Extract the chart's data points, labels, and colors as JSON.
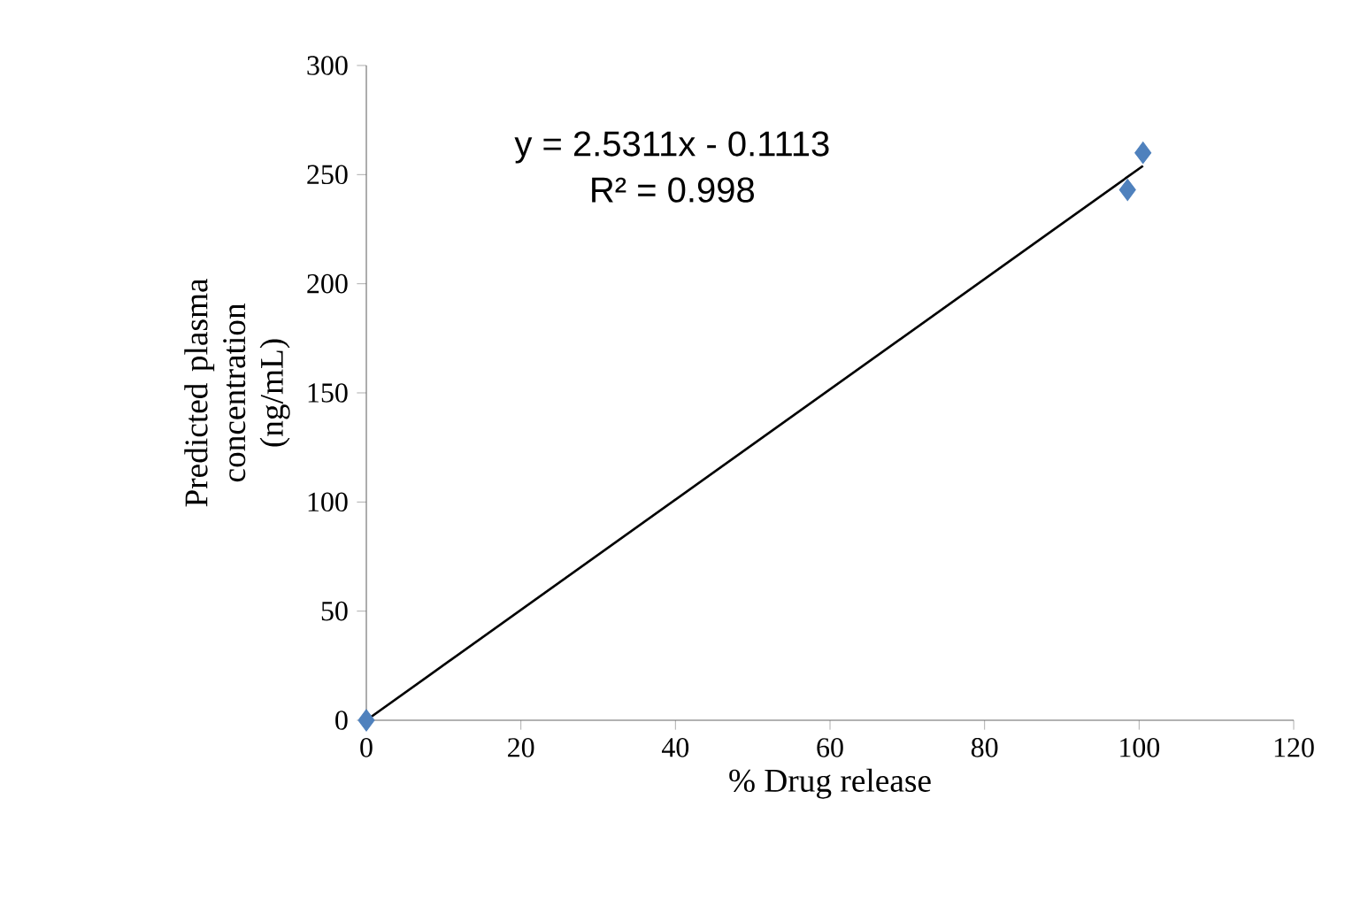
{
  "chart_data": {
    "type": "scatter",
    "xlabel": "% Drug release",
    "ylabel": "Predicted plasma concentration (ng/mL)",
    "annotations": [
      "y = 2.5311x - 0.1113",
      "R² = 0.998"
    ],
    "series": [
      {
        "color": "#4f81bd",
        "marker": "diamond",
        "x": [
          0,
          98.5,
          100.5
        ],
        "values": [
          0,
          243,
          260
        ]
      },
      {
        "type": "line",
        "color": "#000000",
        "marker": "none",
        "line_style": "solid",
        "x": [
          0,
          100.5
        ],
        "values": [
          0,
          254
        ]
      }
    ],
    "xlim": [
      0,
      120
    ],
    "ylim": [
      0,
      300
    ],
    "xticks": [
      0,
      20,
      40,
      60,
      80,
      100,
      120
    ],
    "yticks": [
      0,
      50,
      100,
      150,
      200,
      250,
      300
    ]
  }
}
